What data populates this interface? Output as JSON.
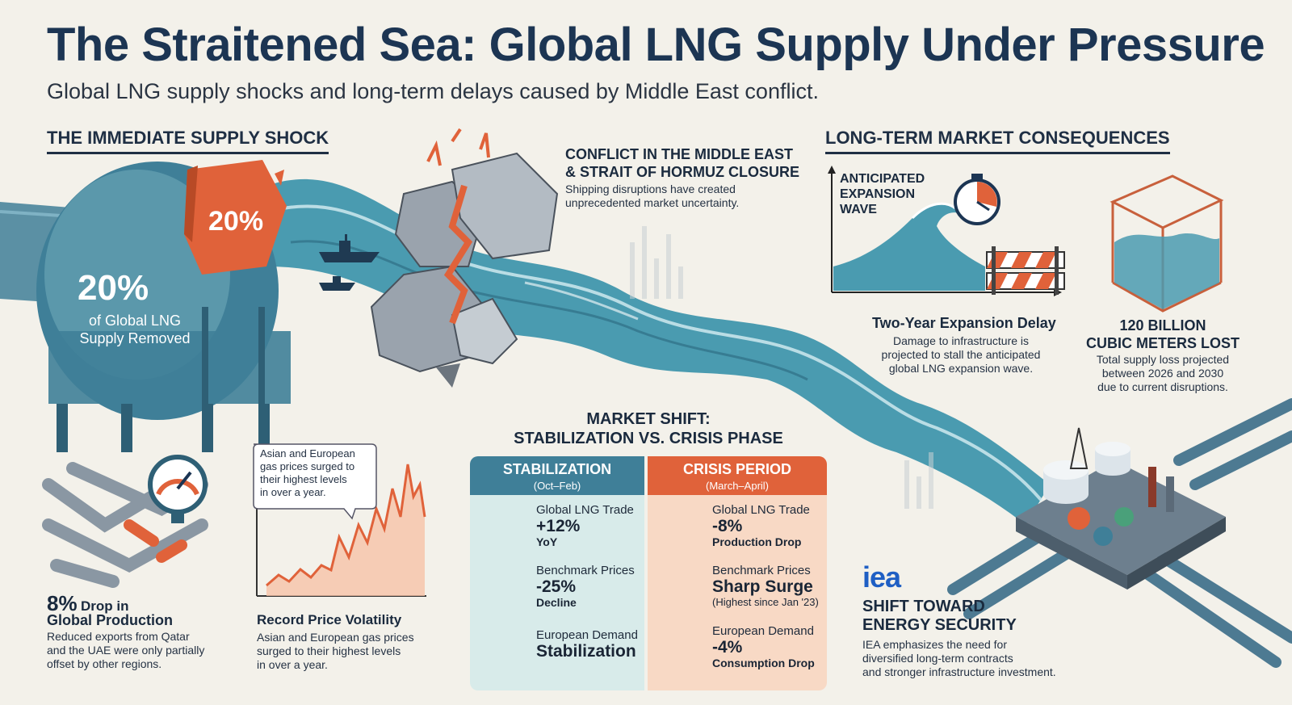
{
  "header": {
    "title": "The Straitened Sea: Global LNG Supply Under Pressure",
    "subtitle": "Global LNG supply shocks and long-term delays caused by Middle East conflict."
  },
  "left_section": {
    "heading": "THE IMMEDIATE SUPPLY SHOCK",
    "tank_badge": "20%",
    "tank_value": "20%",
    "tank_label_1": "of Global LNG",
    "tank_label_2": "Supply Removed",
    "production_value": "8%",
    "production_title_1": "Drop in",
    "production_title_2": "Global Production",
    "production_text": [
      "Reduced exports from Qatar",
      "and the UAE were only partially",
      "offset by other regions."
    ],
    "callout_text": [
      "Asian and European",
      "gas prices surged to",
      "their highest levels",
      "in over a year."
    ],
    "volatility_title": "Record Price Volatility",
    "volatility_text": [
      "Asian and European gas prices",
      "surged to their highest levels",
      "in over a year."
    ]
  },
  "conflict": {
    "title_1": "CONFLICT IN THE MIDDLE EAST",
    "title_2": "& STRAIT OF HORMUZ CLOSURE",
    "text_1": "Shipping disruptions have created",
    "text_2": "unprecedented market uncertainty."
  },
  "market_shift": {
    "title_1": "MARKET SHIFT:",
    "title_2": "STABILIZATION VS. CRISIS PHASE",
    "stabilization": {
      "header": "STABILIZATION",
      "period": "(Oct–Feb)",
      "rows": [
        {
          "label": "Global LNG Trade",
          "value": "+12%",
          "sub": "YoY"
        },
        {
          "label": "Benchmark Prices",
          "value": "-25%",
          "sub": "Decline"
        },
        {
          "label": "European Demand",
          "value": "Stabilization",
          "sub": ""
        }
      ]
    },
    "crisis": {
      "header": "CRISIS PERIOD",
      "period": "(March–April)",
      "rows": [
        {
          "label": "Global LNG Trade",
          "value": "-8%",
          "sub": "Production Drop"
        },
        {
          "label": "Benchmark Prices",
          "value": "Sharp Surge",
          "sub": "(Highest since Jan '23)"
        },
        {
          "label": "European Demand",
          "value": "-4%",
          "sub": "Consumption Drop"
        }
      ]
    }
  },
  "right_section": {
    "heading": "LONG-TERM MARKET CONSEQUENCES",
    "wave_label": [
      "ANTICIPATED",
      "EXPANSION",
      "WAVE"
    ],
    "delay_title": "Two-Year Expansion Delay",
    "delay_text": [
      "Damage to infrastructure is",
      "projected to stall the anticipated",
      "global LNG expansion wave."
    ],
    "loss_title_1": "120 BILLION",
    "loss_title_2": "CUBIC METERS LOST",
    "loss_text": [
      "Total supply loss projected",
      "between 2026 and 2030",
      "due to current disruptions."
    ],
    "iea_logo": "iea",
    "security_title_1": "SHIFT TOWARD",
    "security_title_2": "ENERGY SECURITY",
    "security_text": [
      "IEA emphasizes the need for",
      "diversified long-term contracts",
      "and stronger infrastructure investment."
    ]
  },
  "colors": {
    "navy": "#1c3553",
    "teal": "#3f7f98",
    "orange": "#e0623a",
    "water": "#4a9bb0",
    "stab_bg": "#d8ebea",
    "crisis_bg": "#f8d9c5"
  },
  "icons": [
    "lng-tank-icon",
    "rock-icon",
    "ship-icon",
    "stopwatch-icon",
    "barrier-icon",
    "cube-icon",
    "pipe-icon",
    "gauge-icon",
    "terminal-icon",
    "trend-up-icon",
    "trend-down-icon"
  ]
}
